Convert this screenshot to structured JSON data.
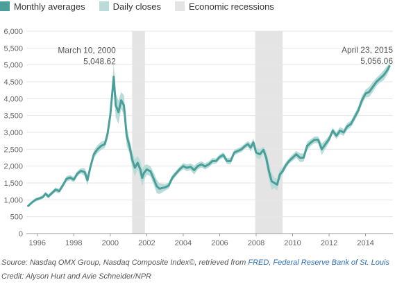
{
  "legend": {
    "monthly": "Monthly averages",
    "daily": "Daily closes",
    "recessions": "Economic recessions"
  },
  "colors": {
    "monthly": "#4a9f9a",
    "daily": "#b9dcd8",
    "recession": "#e4e4e4",
    "grid": "#e6e6e6",
    "axis": "#999999"
  },
  "footer": {
    "source_prefix": "Source: Nasdaq OMX Group, Nasdaq Composite Index©, retrieved from ",
    "source_link": "FRED, Federal Reserve Bank of St. Louis",
    "credit": "Credit: Alyson Hurt and Avie Schneider/NPR"
  },
  "chart_data": {
    "type": "line",
    "title": "",
    "xlabel": "",
    "ylabel": "",
    "xlim": [
      1995.4,
      2015.5
    ],
    "ylim": [
      0,
      6000
    ],
    "yticks": [
      0,
      500,
      1000,
      1500,
      2000,
      2500,
      3000,
      3500,
      4000,
      4500,
      5000,
      5500,
      6000
    ],
    "ytick_labels": [
      "0",
      "500",
      "1,000",
      "1,500",
      "2,000",
      "2,500",
      "3,000",
      "3,500",
      "4,000",
      "4,500",
      "5,000",
      "5,500",
      "6,000"
    ],
    "xticks": [
      1996,
      1998,
      2000,
      2002,
      2004,
      2006,
      2008,
      2010,
      2012,
      2014
    ],
    "xtick_labels": [
      "1996",
      "1998",
      "2000",
      "2002",
      "2004",
      "2006",
      "2008",
      "2010",
      "2012",
      "2014"
    ],
    "grid": true,
    "legend_position": "top-left",
    "recessions": [
      [
        2001.2,
        2001.9
      ],
      [
        2007.95,
        2009.45
      ]
    ],
    "series": [
      {
        "name": "Monthly averages",
        "x": [
          1995.5,
          1995.7,
          1995.9,
          1996.1,
          1996.3,
          1996.45,
          1996.6,
          1996.8,
          1997.0,
          1997.2,
          1997.4,
          1997.6,
          1997.8,
          1998.0,
          1998.2,
          1998.4,
          1998.6,
          1998.75,
          1998.9,
          1999.1,
          1999.3,
          1999.5,
          1999.7,
          1999.85,
          2000.0,
          2000.1,
          2000.19,
          2000.3,
          2000.45,
          2000.6,
          2000.75,
          2000.9,
          2001.05,
          2001.2,
          2001.35,
          2001.5,
          2001.65,
          2001.75,
          2001.85,
          2002.0,
          2002.2,
          2002.4,
          2002.55,
          2002.7,
          2002.85,
          2003.0,
          2003.2,
          2003.4,
          2003.6,
          2003.8,
          2004.0,
          2004.2,
          2004.4,
          2004.6,
          2004.8,
          2005.0,
          2005.2,
          2005.4,
          2005.6,
          2005.8,
          2006.0,
          2006.2,
          2006.4,
          2006.6,
          2006.8,
          2007.0,
          2007.2,
          2007.4,
          2007.55,
          2007.7,
          2007.85,
          2008.0,
          2008.2,
          2008.4,
          2008.55,
          2008.7,
          2008.85,
          2009.0,
          2009.15,
          2009.3,
          2009.45,
          2009.6,
          2009.8,
          2010.0,
          2010.2,
          2010.4,
          2010.6,
          2010.8,
          2011.0,
          2011.2,
          2011.4,
          2011.6,
          2011.8,
          2012.0,
          2012.2,
          2012.4,
          2012.6,
          2012.8,
          2013.0,
          2013.2,
          2013.4,
          2013.6,
          2013.8,
          2014.0,
          2014.2,
          2014.4,
          2014.6,
          2014.8,
          2015.0,
          2015.2,
          2015.31
        ],
        "y": [
          820,
          920,
          1000,
          1040,
          1080,
          1180,
          1100,
          1200,
          1300,
          1260,
          1430,
          1620,
          1660,
          1600,
          1780,
          1860,
          1820,
          1580,
          1950,
          2350,
          2500,
          2600,
          2650,
          2950,
          3500,
          4100,
          4650,
          3800,
          3600,
          3950,
          3800,
          2900,
          2600,
          2200,
          1950,
          2100,
          1900,
          1650,
          1800,
          1900,
          1850,
          1600,
          1400,
          1330,
          1350,
          1370,
          1420,
          1650,
          1780,
          1900,
          2000,
          1950,
          1980,
          1880,
          2000,
          2050,
          1990,
          2050,
          2150,
          2150,
          2270,
          2330,
          2150,
          2150,
          2400,
          2450,
          2500,
          2600,
          2650,
          2550,
          2700,
          2400,
          2350,
          2480,
          2250,
          1850,
          1550,
          1500,
          1450,
          1750,
          1850,
          2000,
          2150,
          2250,
          2350,
          2250,
          2250,
          2600,
          2700,
          2780,
          2780,
          2500,
          2650,
          2800,
          3050,
          2900,
          3050,
          3000,
          3180,
          3250,
          3450,
          3650,
          3950,
          4150,
          4200,
          4350,
          4500,
          4600,
          4700,
          4850,
          4960
        ]
      },
      {
        "name": "Daily closes",
        "x": [
          1995.5,
          1995.7,
          1995.9,
          1996.1,
          1996.3,
          1996.45,
          1996.6,
          1996.8,
          1997.0,
          1997.2,
          1997.4,
          1997.6,
          1997.8,
          1998.0,
          1998.2,
          1998.4,
          1998.6,
          1998.75,
          1998.9,
          1999.1,
          1999.3,
          1999.5,
          1999.7,
          1999.85,
          2000.0,
          2000.1,
          2000.19,
          2000.3,
          2000.45,
          2000.6,
          2000.75,
          2000.9,
          2001.05,
          2001.2,
          2001.35,
          2001.5,
          2001.65,
          2001.75,
          2001.85,
          2002.0,
          2002.2,
          2002.4,
          2002.55,
          2002.7,
          2002.85,
          2003.0,
          2003.2,
          2003.4,
          2003.6,
          2003.8,
          2004.0,
          2004.2,
          2004.4,
          2004.6,
          2004.8,
          2005.0,
          2005.2,
          2005.4,
          2005.6,
          2005.8,
          2006.0,
          2006.2,
          2006.4,
          2006.6,
          2006.8,
          2007.0,
          2007.2,
          2007.4,
          2007.55,
          2007.7,
          2007.85,
          2008.0,
          2008.2,
          2008.4,
          2008.55,
          2008.7,
          2008.85,
          2009.0,
          2009.15,
          2009.3,
          2009.45,
          2009.6,
          2009.8,
          2010.0,
          2010.2,
          2010.4,
          2010.6,
          2010.8,
          2011.0,
          2011.2,
          2011.4,
          2011.6,
          2011.8,
          2012.0,
          2012.2,
          2012.4,
          2012.6,
          2012.8,
          2013.0,
          2013.2,
          2013.4,
          2013.6,
          2013.8,
          2014.0,
          2014.2,
          2014.4,
          2014.6,
          2014.8,
          2015.0,
          2015.2,
          2015.31
        ],
        "low": [
          790,
          880,
          950,
          990,
          1030,
          1120,
          1040,
          1140,
          1230,
          1190,
          1360,
          1540,
          1580,
          1520,
          1700,
          1780,
          1700,
          1420,
          1850,
          2240,
          2380,
          2480,
          2540,
          2800,
          3300,
          3900,
          4300,
          3450,
          3250,
          3700,
          3500,
          2600,
          2400,
          1950,
          1700,
          1900,
          1650,
          1400,
          1580,
          1750,
          1700,
          1420,
          1200,
          1170,
          1220,
          1270,
          1330,
          1560,
          1700,
          1820,
          1910,
          1850,
          1880,
          1750,
          1900,
          1960,
          1900,
          1960,
          2060,
          2070,
          2190,
          2250,
          2060,
          2050,
          2320,
          2370,
          2420,
          2520,
          2560,
          2430,
          2580,
          2250,
          2200,
          2380,
          2050,
          1600,
          1300,
          1350,
          1270,
          1600,
          1750,
          1900,
          2070,
          2150,
          2250,
          2120,
          2130,
          2480,
          2600,
          2680,
          2680,
          2330,
          2520,
          2700,
          2960,
          2800,
          2940,
          2900,
          3080,
          3150,
          3340,
          3540,
          3820,
          4030,
          4050,
          4200,
          4380,
          4480,
          4550,
          4720,
          4860
        ],
        "high": [
          850,
          960,
          1050,
          1090,
          1130,
          1240,
          1160,
          1260,
          1370,
          1330,
          1500,
          1700,
          1740,
          1680,
          1860,
          1940,
          1940,
          1740,
          2050,
          2460,
          2620,
          2720,
          2760,
          3100,
          3700,
          4300,
          5048.62,
          4150,
          3950,
          4200,
          4100,
          3200,
          2800,
          2450,
          2200,
          2300,
          2150,
          1900,
          2020,
          2050,
          2000,
          1780,
          1600,
          1490,
          1480,
          1470,
          1510,
          1740,
          1860,
          1980,
          2090,
          2050,
          2080,
          2010,
          2100,
          2140,
          2080,
          2140,
          2240,
          2230,
          2350,
          2410,
          2240,
          2250,
          2480,
          2530,
          2580,
          2680,
          2740,
          2670,
          2820,
          2550,
          2500,
          2580,
          2450,
          2100,
          1800,
          1650,
          1630,
          1900,
          1950,
          2100,
          2230,
          2350,
          2450,
          2380,
          2370,
          2720,
          2800,
          2880,
          2880,
          2670,
          2780,
          2900,
          3140,
          3000,
          3160,
          3100,
          3280,
          3350,
          3560,
          3760,
          4080,
          4270,
          4350,
          4500,
          4620,
          4720,
          4850,
          4980,
          5056.06
        ]
      }
    ],
    "annotations": [
      {
        "date": "March 10, 2000",
        "value": "5,048.62",
        "x": 2000.19,
        "y": 5048.62
      },
      {
        "date": "April 23, 2015",
        "value": "5,056.06",
        "x": 2015.31,
        "y": 5056.06
      }
    ]
  }
}
